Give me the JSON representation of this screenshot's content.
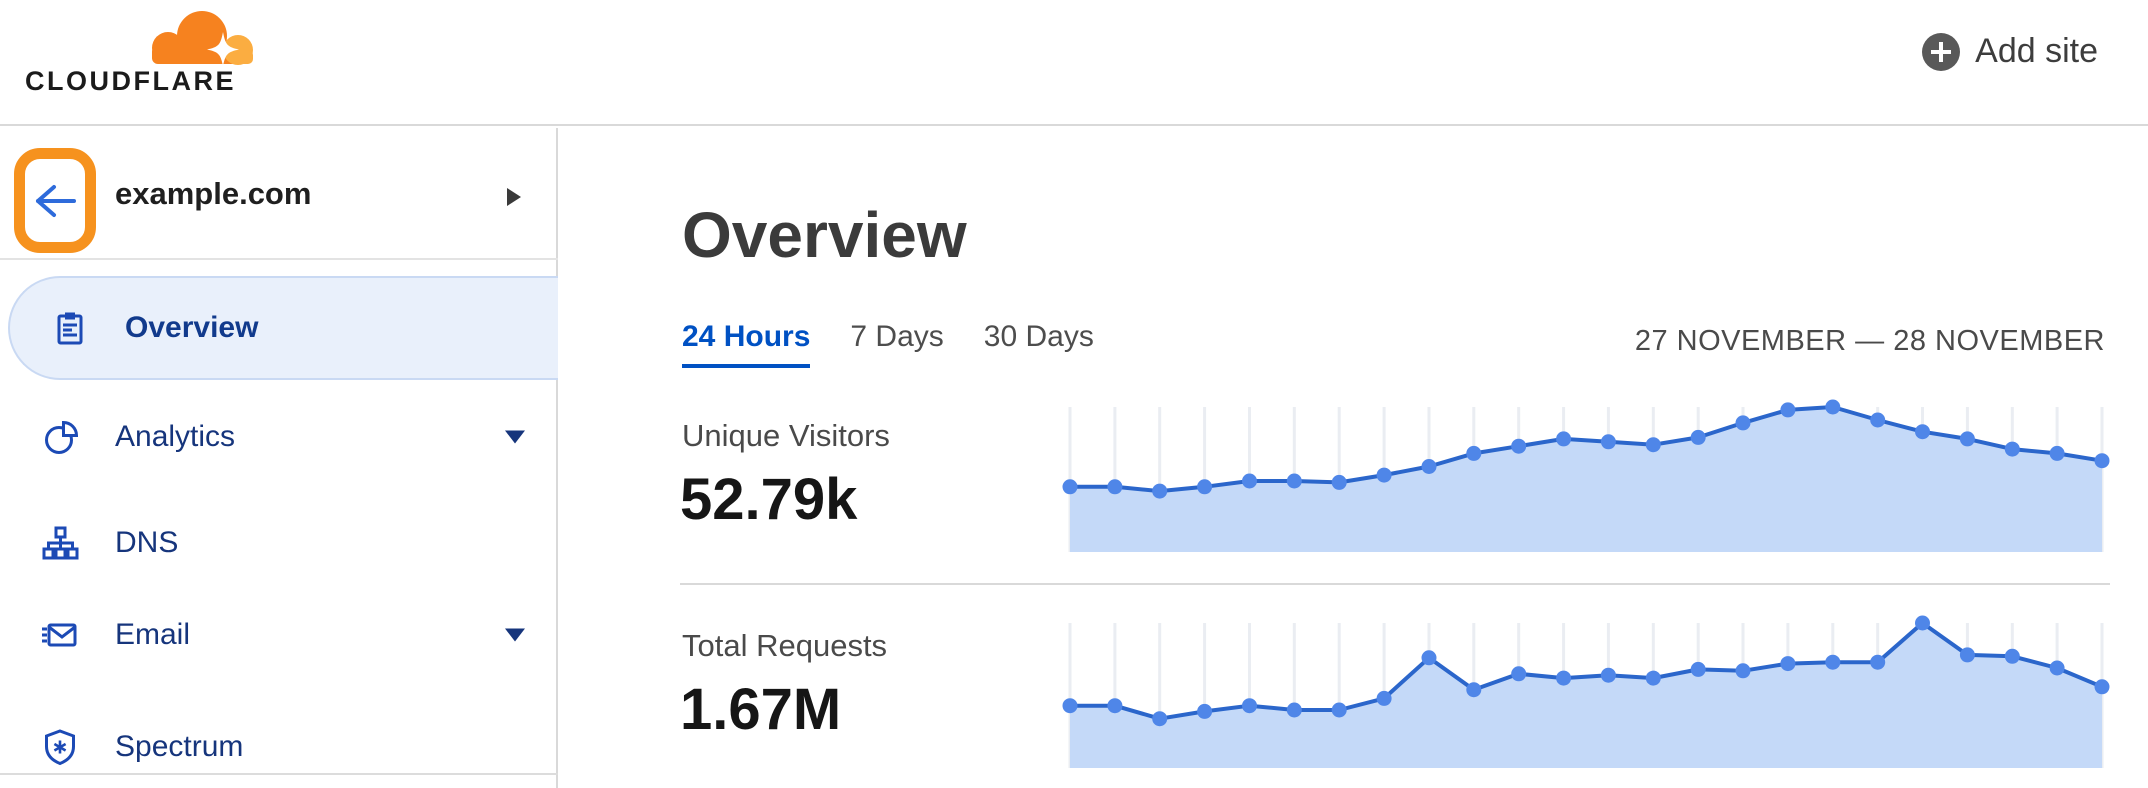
{
  "header": {
    "brand": "CLOUDFLARE",
    "add_site": "Add site"
  },
  "sidebar": {
    "site_name": "example.com",
    "items": [
      {
        "label": "Overview",
        "icon": "clipboard",
        "selected": true,
        "has_caret": false
      },
      {
        "label": "Analytics",
        "icon": "pie-chart",
        "selected": false,
        "has_caret": true
      },
      {
        "label": "DNS",
        "icon": "sitemap",
        "selected": false,
        "has_caret": false
      },
      {
        "label": "Email",
        "icon": "envelope-fast",
        "selected": false,
        "has_caret": true
      },
      {
        "label": "Spectrum",
        "icon": "shield-asterisk",
        "selected": false,
        "has_caret": false
      }
    ]
  },
  "main": {
    "title": "Overview",
    "tabs": [
      {
        "label": "24 Hours",
        "active": true
      },
      {
        "label": "7 Days",
        "active": false
      },
      {
        "label": "30 Days",
        "active": false
      }
    ],
    "date_range": "27 NOVEMBER — 28 NOVEMBER",
    "metrics": [
      {
        "label": "Unique Visitors",
        "value": "52.79k"
      },
      {
        "label": "Total Requests",
        "value": "1.67M"
      }
    ]
  },
  "colors": {
    "brand_orange": "#f6821f",
    "brand_orange_light": "#fbad41",
    "highlight_orange": "#f6921e",
    "link_blue": "#0051c3",
    "nav_navy": "#16357c",
    "icon_blue": "#1c4ab5",
    "chart_line": "#2b66cb",
    "chart_dot": "#4f86e8",
    "chart_fill": "#c4d9f8",
    "gridline": "#eaedf2",
    "divider": "#d9d9d9"
  },
  "chart_data": [
    {
      "type": "area",
      "title": "Unique Visitors",
      "summary_value": "52.79k",
      "points": 24,
      "x_unit": "hourly samples, 27 November — 28 November (24 Hours view)",
      "values_pct_of_max": [
        45,
        45,
        42,
        45,
        49,
        49,
        48,
        53,
        59,
        68,
        73,
        78,
        76,
        74,
        79,
        89,
        98,
        100,
        91,
        83,
        78,
        71,
        68,
        63
      ],
      "ylim": [
        0,
        100
      ],
      "grid": "vertical-only",
      "legend": "none",
      "markers": "filled-circles"
    },
    {
      "type": "area",
      "title": "Total Requests",
      "summary_value": "1.67M",
      "points": 24,
      "x_unit": "hourly samples, 27 November — 28 November (24 Hours view)",
      "values_pct_of_max": [
        43,
        43,
        34,
        39,
        43,
        40,
        40,
        48,
        76,
        54,
        65,
        62,
        64,
        62,
        68,
        67,
        72,
        73,
        73,
        100,
        78,
        77,
        69,
        56
      ],
      "ylim": [
        0,
        100
      ],
      "grid": "vertical-only",
      "legend": "none",
      "markers": "filled-circles"
    }
  ]
}
